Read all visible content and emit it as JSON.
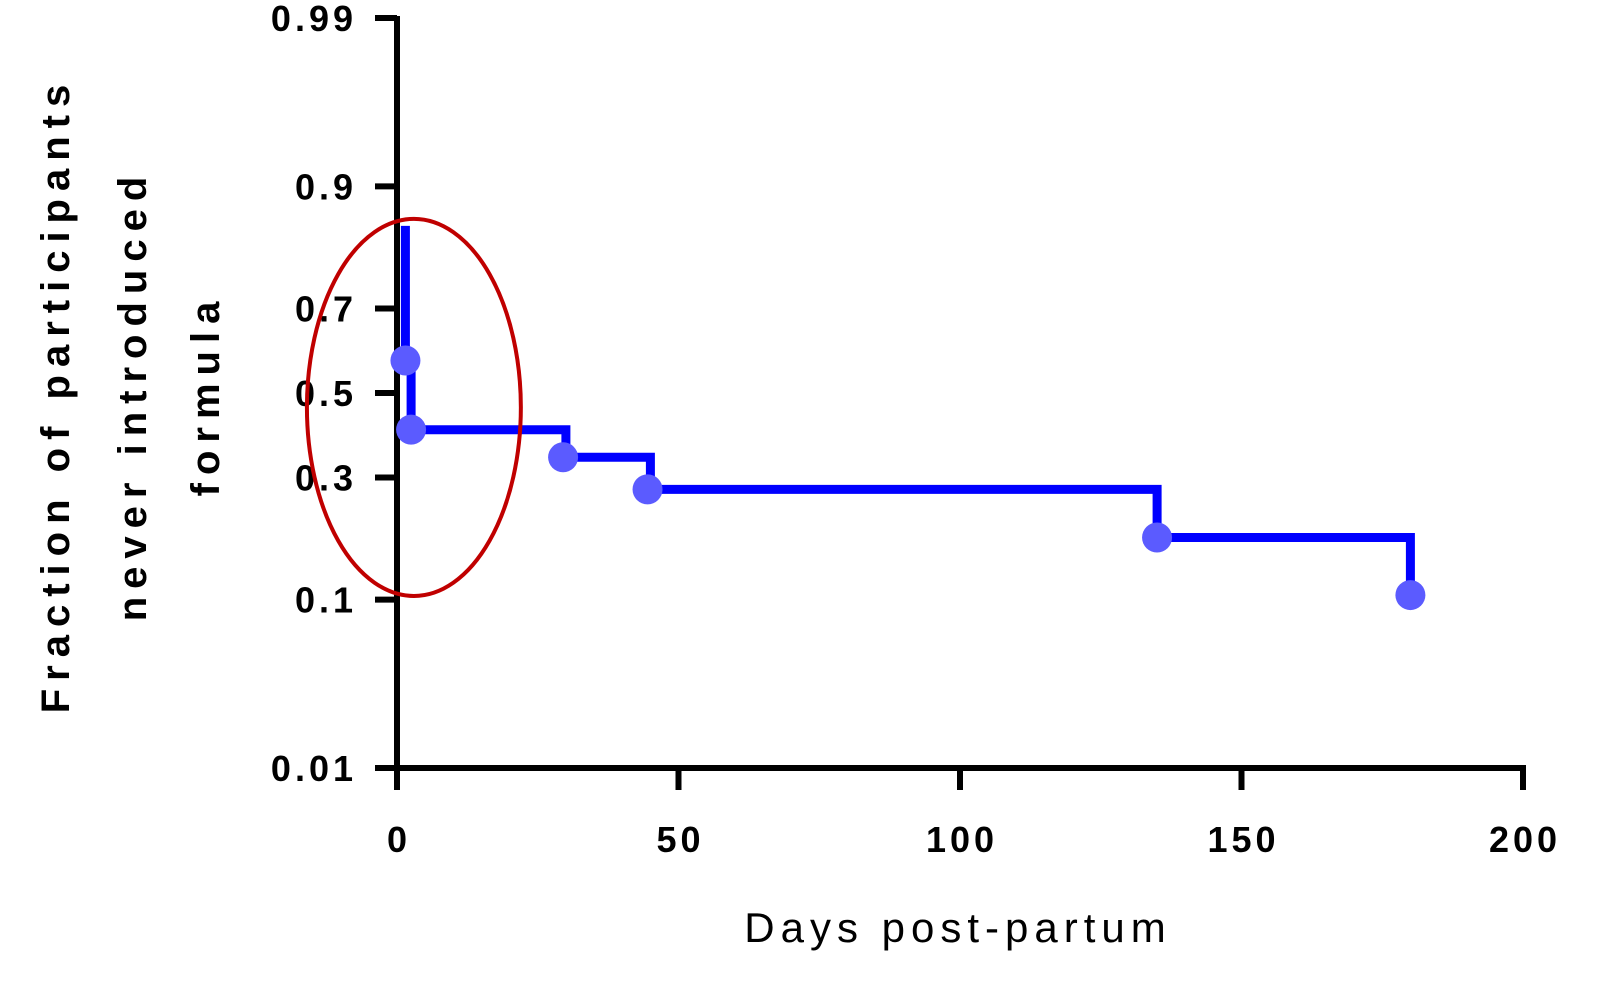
{
  "chart_data": {
    "type": "line",
    "subtype": "kaplan-meier-step",
    "xlabel": "Days post-partum",
    "ylabel_lines": [
      "Fraction of participants",
      "never introduced",
      "formula"
    ],
    "xlim": [
      0,
      200
    ],
    "ylim": [
      0.01,
      0.99
    ],
    "y_scale": "probability",
    "x_ticks": [
      0,
      50,
      100,
      150,
      200
    ],
    "x_tick_labels": [
      "0",
      "50",
      "100",
      "150",
      "200"
    ],
    "y_ticks": [
      0.01,
      0.1,
      0.3,
      0.5,
      0.7,
      0.9,
      0.99
    ],
    "y_tick_labels": [
      "0.01",
      "0.1",
      "0.3",
      "0.5",
      "0.7",
      "0.9",
      "0.99"
    ],
    "grid": false,
    "series": [
      {
        "color": "#0000ff",
        "marker_color": "#5b5bff",
        "step_path": [
          [
            1.5,
            0.85
          ],
          [
            1.5,
            0.58
          ],
          [
            2.5,
            0.58
          ],
          [
            2.5,
            0.41
          ],
          [
            30,
            0.41
          ],
          [
            30,
            0.345
          ],
          [
            45,
            0.345
          ],
          [
            45,
            0.275
          ],
          [
            135,
            0.275
          ],
          [
            135,
            0.185
          ],
          [
            180,
            0.185
          ],
          [
            180,
            0.105
          ]
        ],
        "markers": [
          [
            1.5,
            0.58
          ],
          [
            2.5,
            0.41
          ],
          [
            29.5,
            0.345
          ],
          [
            44.5,
            0.275
          ],
          [
            135,
            0.185
          ],
          [
            180,
            0.105
          ]
        ]
      }
    ],
    "annotation": {
      "shape": "ellipse",
      "color": "#c00000",
      "center": [
        3,
        0.43
      ],
      "x_halfwidth": 19,
      "y_range": [
        0.104,
        0.86
      ]
    }
  }
}
